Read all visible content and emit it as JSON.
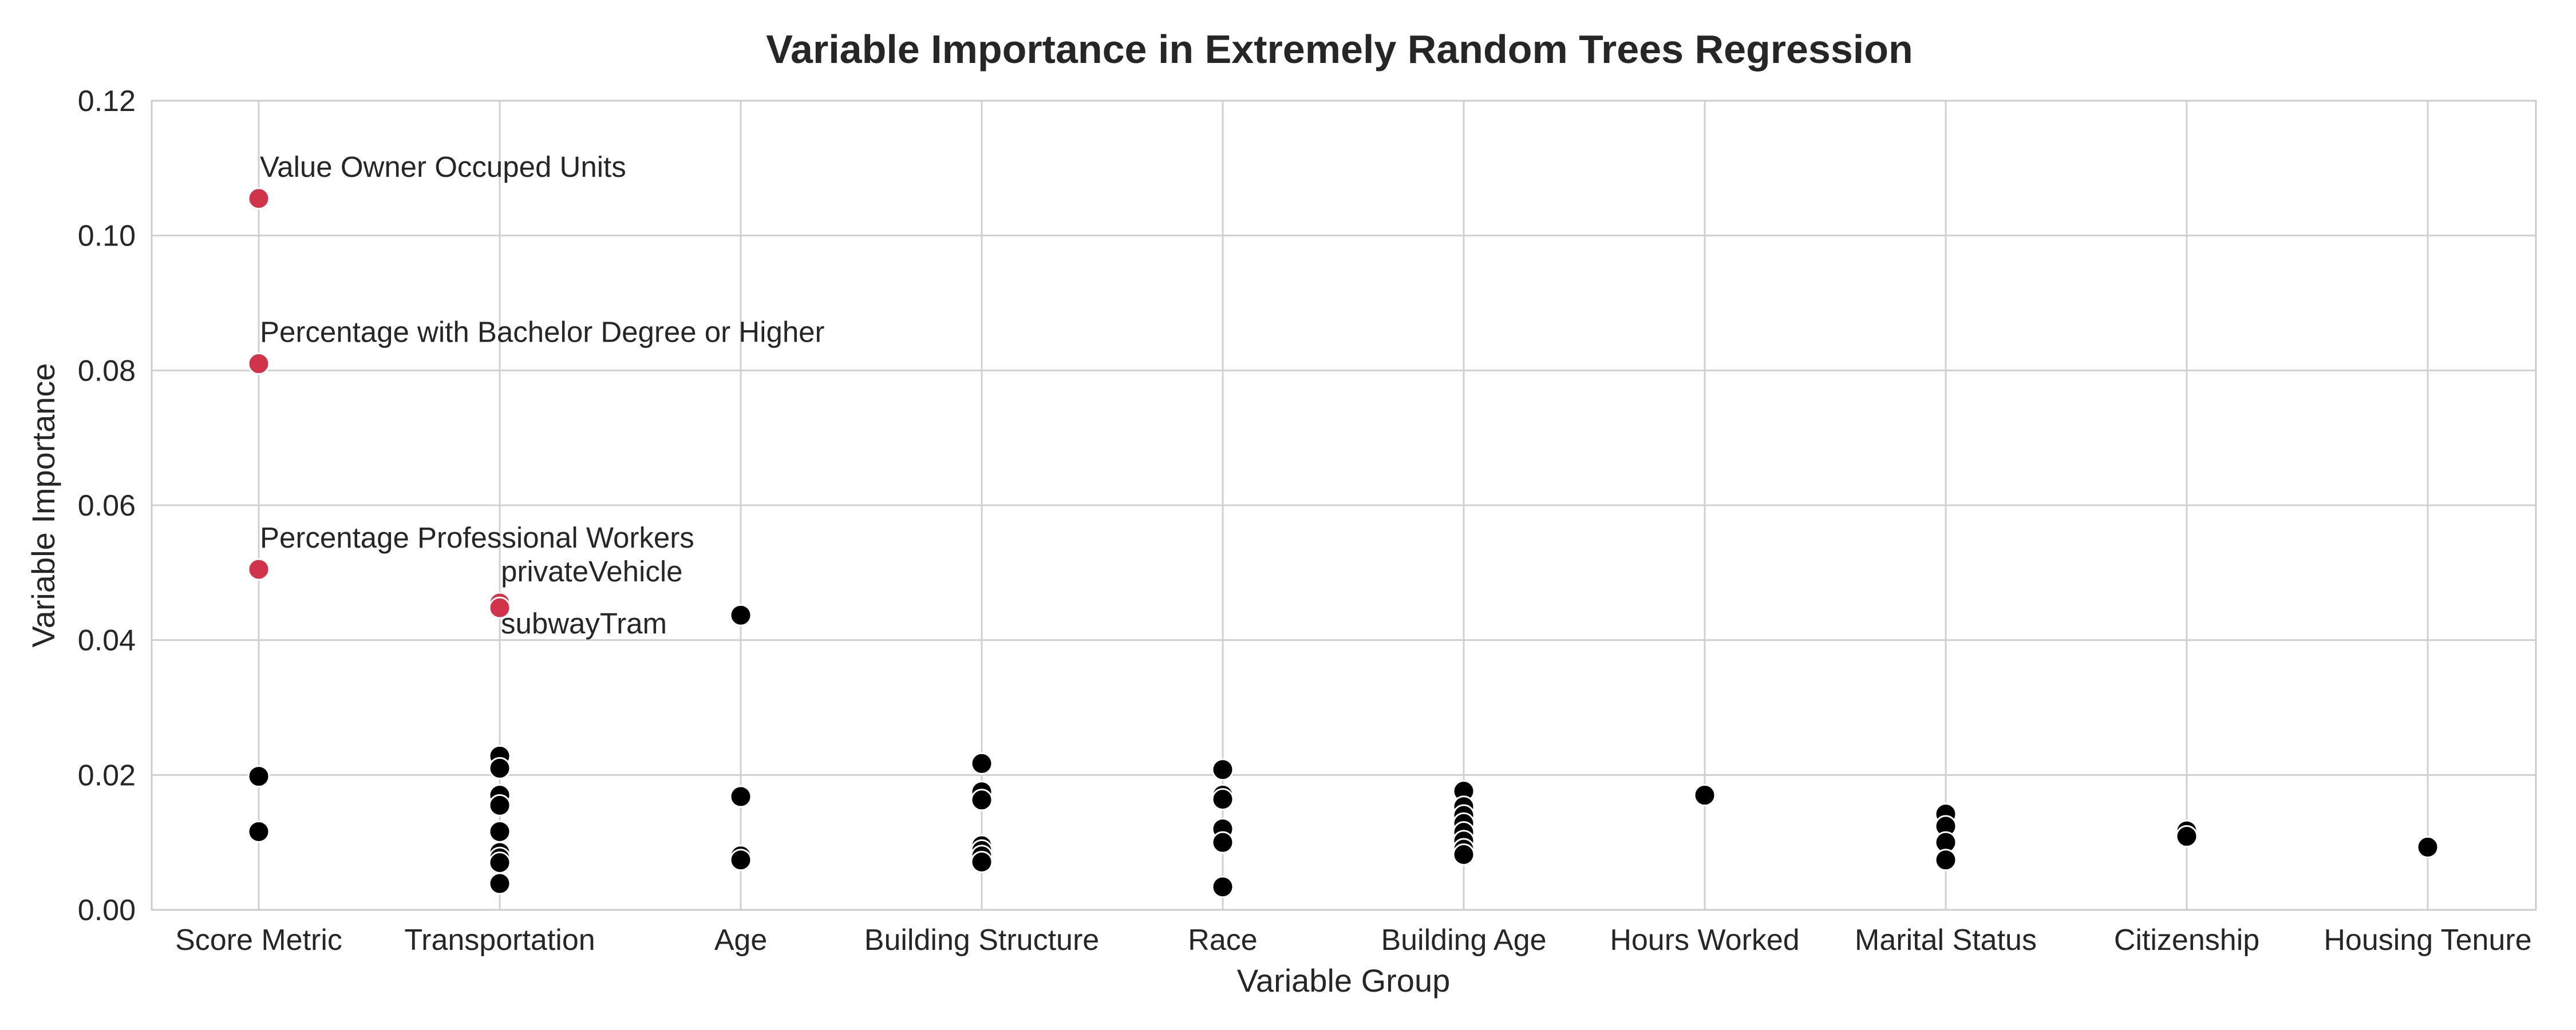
{
  "chart_data": {
    "type": "scatter",
    "title": "Variable Importance in Extremely Random Trees Regression",
    "xlabel": "Variable Group",
    "ylabel": "Variable Importance",
    "ylim": [
      0,
      0.12
    ],
    "yticks": [
      "0.00",
      "0.02",
      "0.04",
      "0.06",
      "0.08",
      "0.10",
      "0.12"
    ],
    "categories": [
      "Score Metric",
      "Transportation",
      "Age",
      "Building Structure",
      "Race",
      "Building Age",
      "Hours Worked",
      "Marital Status",
      "Citizenship",
      "Housing Tenure"
    ],
    "grid": true,
    "colors": {
      "highlight": "#d1334a",
      "default": "#000000",
      "grid": "#d0d0d0"
    },
    "points": [
      {
        "category": "Score Metric",
        "y": 0.1055,
        "highlight": true,
        "label": "Value Owner Occuped Units",
        "label_position": "above"
      },
      {
        "category": "Score Metric",
        "y": 0.081,
        "highlight": true,
        "label": "Percentage with Bachelor Degree or Higher",
        "label_position": "above"
      },
      {
        "category": "Score Metric",
        "y": 0.0505,
        "highlight": true,
        "label": "Percentage Professional Workers",
        "label_position": "above"
      },
      {
        "category": "Score Metric",
        "y": 0.0198,
        "highlight": false
      },
      {
        "category": "Score Metric",
        "y": 0.0116,
        "highlight": false
      },
      {
        "category": "Transportation",
        "y": 0.0455,
        "highlight": true,
        "label": "privateVehicle",
        "label_position": "above"
      },
      {
        "category": "Transportation",
        "y": 0.0448,
        "highlight": true,
        "label": "subwayTram",
        "label_position": "below"
      },
      {
        "category": "Transportation",
        "y": 0.0228,
        "highlight": false
      },
      {
        "category": "Transportation",
        "y": 0.021,
        "highlight": false
      },
      {
        "category": "Transportation",
        "y": 0.017,
        "highlight": false
      },
      {
        "category": "Transportation",
        "y": 0.0155,
        "highlight": false
      },
      {
        "category": "Transportation",
        "y": 0.0116,
        "highlight": false
      },
      {
        "category": "Transportation",
        "y": 0.0085,
        "highlight": false
      },
      {
        "category": "Transportation",
        "y": 0.0077,
        "highlight": false
      },
      {
        "category": "Transportation",
        "y": 0.007,
        "highlight": false
      },
      {
        "category": "Transportation",
        "y": 0.0039,
        "highlight": false
      },
      {
        "category": "Age",
        "y": 0.0437,
        "highlight": false
      },
      {
        "category": "Age",
        "y": 0.0168,
        "highlight": false
      },
      {
        "category": "Age",
        "y": 0.008,
        "highlight": false
      },
      {
        "category": "Age",
        "y": 0.0074,
        "highlight": false
      },
      {
        "category": "Building Structure",
        "y": 0.0217,
        "highlight": false
      },
      {
        "category": "Building Structure",
        "y": 0.0175,
        "highlight": false
      },
      {
        "category": "Building Structure",
        "y": 0.0163,
        "highlight": false
      },
      {
        "category": "Building Structure",
        "y": 0.0095,
        "highlight": false
      },
      {
        "category": "Building Structure",
        "y": 0.0088,
        "highlight": false
      },
      {
        "category": "Building Structure",
        "y": 0.008,
        "highlight": false
      },
      {
        "category": "Building Structure",
        "y": 0.0071,
        "highlight": false
      },
      {
        "category": "Race",
        "y": 0.0208,
        "highlight": false
      },
      {
        "category": "Race",
        "y": 0.017,
        "highlight": false
      },
      {
        "category": "Race",
        "y": 0.0164,
        "highlight": false
      },
      {
        "category": "Race",
        "y": 0.012,
        "highlight": false
      },
      {
        "category": "Race",
        "y": 0.01,
        "highlight": false
      },
      {
        "category": "Race",
        "y": 0.0034,
        "highlight": false
      },
      {
        "category": "Building Age",
        "y": 0.0176,
        "highlight": false
      },
      {
        "category": "Building Age",
        "y": 0.0153,
        "highlight": false
      },
      {
        "category": "Building Age",
        "y": 0.014,
        "highlight": false
      },
      {
        "category": "Building Age",
        "y": 0.0128,
        "highlight": false
      },
      {
        "category": "Building Age",
        "y": 0.0115,
        "highlight": false
      },
      {
        "category": "Building Age",
        "y": 0.0102,
        "highlight": false
      },
      {
        "category": "Building Age",
        "y": 0.009,
        "highlight": false
      },
      {
        "category": "Building Age",
        "y": 0.0082,
        "highlight": false
      },
      {
        "category": "Hours Worked",
        "y": 0.017,
        "highlight": false
      },
      {
        "category": "Marital Status",
        "y": 0.0142,
        "highlight": false
      },
      {
        "category": "Marital Status",
        "y": 0.0124,
        "highlight": false
      },
      {
        "category": "Marital Status",
        "y": 0.01,
        "highlight": false
      },
      {
        "category": "Marital Status",
        "y": 0.0074,
        "highlight": false
      },
      {
        "category": "Citizenship",
        "y": 0.0117,
        "highlight": false
      },
      {
        "category": "Citizenship",
        "y": 0.0109,
        "highlight": false
      },
      {
        "category": "Housing Tenure",
        "y": 0.0093,
        "highlight": false
      }
    ]
  }
}
